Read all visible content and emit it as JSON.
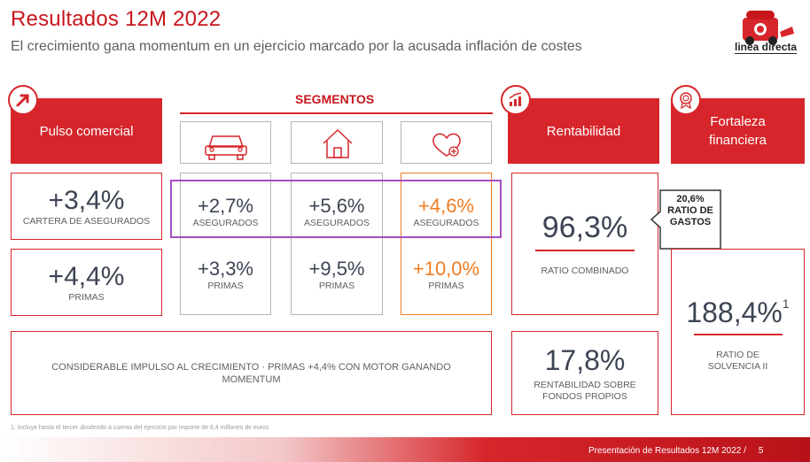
{
  "header": {
    "title": "Resultados 12M 2022",
    "subtitle": "El crecimiento gana momentum en un ejercicio marcado por la acusada inflación de costes",
    "logo_text": "linea directa"
  },
  "pulso": {
    "title": "Pulso comercial",
    "cartera_value": "+3,4%",
    "cartera_label": "CARTERA DE ASEGURADOS",
    "primas_value": "+4,4%",
    "primas_label": "PRIMAS"
  },
  "segmentos": {
    "title": "SEGMENTOS",
    "columns": [
      {
        "icon": "car-icon",
        "asegurados": "+2,7%",
        "asegurados_label": "ASEGURADOS",
        "primas": "+3,3%",
        "primas_label": "PRIMAS"
      },
      {
        "icon": "house-icon",
        "asegurados": "+5,6%",
        "asegurados_label": "ASEGURADOS",
        "primas": "+9,5%",
        "primas_label": "PRIMAS"
      },
      {
        "icon": "heart-plus-icon",
        "asegurados": "+4,6%",
        "asegurados_label": "ASEGURADOS",
        "primas": "+10,0%",
        "primas_label": "PRIMAS"
      }
    ]
  },
  "summary": {
    "text": "CONSIDERABLE IMPULSO AL CRECIMIENTO · PRIMAS +4,4% CON MOTOR GANANDO MOMENTUM"
  },
  "rentabilidad": {
    "title": "Rentabilidad",
    "ratio_value": "96,3%",
    "ratio_label": "RATIO COMBINADO",
    "callout_value": "20,6%",
    "callout_label": "RATIO DE GASTOS",
    "roe_value": "17,8%",
    "roe_label": "RENTABILIDAD SOBRE FONDOS PROPIOS"
  },
  "fortaleza": {
    "title": "Fortaleza financiera",
    "solvencia_value": "188,4%",
    "solvencia_sup": "1",
    "solvencia_label": "RATIO DE SOLVENCIA II"
  },
  "footnote": "1. Incluye hasta el tercer dividendo a cuenta del ejercicio por importe de 8,4 millones de euros",
  "footer": {
    "text": "Presentación de Resultados 12M 2022 /",
    "page": "5"
  },
  "colors": {
    "brand_red": "#d6262b",
    "orange": "#ef7d22",
    "highlight_purple": "#a64dc5"
  }
}
